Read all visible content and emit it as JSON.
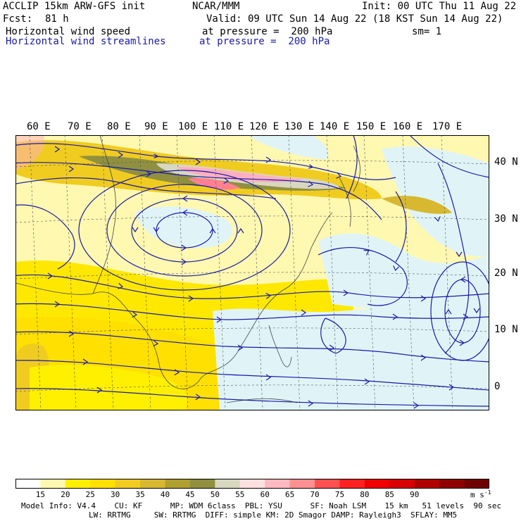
{
  "header": {
    "model": "ACCLIP 15km ARW-GFS init",
    "center": "NCAR/MMM",
    "init": "Init: 00 UTC Thu 11 Aug 22",
    "fcst_label": "Fcst:",
    "fcst_value": "81 h",
    "valid": "Valid: 09 UTC Sun 14 Aug 22 (18 KST Sun 14 Aug 22)",
    "field1": "Horizontal wind speed",
    "field1_level": "at pressure =  200 hPa",
    "sm": "sm= 1",
    "field2": "Horizontal wind streamlines",
    "field2_level": "at pressure =  200 hPa"
  },
  "longitude_labels": [
    "60 E",
    "70 E",
    "80 E",
    "90 E",
    "100 E",
    "110 E",
    "120 E",
    "130 E",
    "140 E",
    "150 E",
    "160 E",
    "170 E"
  ],
  "latitude_labels": [
    "40 N",
    "30 N",
    "20 N",
    "10 N",
    "0"
  ],
  "colorbar": {
    "unit": "m s",
    "unit_exp": "-1",
    "ticks": [
      "15",
      "20",
      "25",
      "30",
      "35",
      "40",
      "45",
      "50",
      "55",
      "60",
      "65",
      "70",
      "75",
      "80",
      "85",
      "90"
    ],
    "colors": [
      "#ffffff",
      "#fff8b0",
      "#fff000",
      "#ffe000",
      "#f0cc20",
      "#d8b830",
      "#b0a030",
      "#909040",
      "#d8d8c0",
      "#ffe0e0",
      "#ffb8c0",
      "#ff9090",
      "#ff5050",
      "#ff2020",
      "#f00000",
      "#d80000",
      "#b00000",
      "#900000",
      "#700000"
    ]
  },
  "footer": {
    "line1": "Model Info: V4.4    CU: KF      MP: WDM 6class  PBL: YSU      SF: Noah LSM    15 km   51 levels  90 sec",
    "line2": "LW: RRTMG     SW: RRTMG  DIFF: simple KM: 2D Smagor DAMP: Rayleigh3  SFLAY: MM5"
  },
  "map_colors": {
    "calm": "#e0f4f8",
    "low": "#fff8b0",
    "mid": "#ffe800",
    "high": "#d8b830",
    "jet": "#909040",
    "core": "#ffb0c0",
    "max": "#ff8090",
    "streamline": "#1a1aa6",
    "coast": "#444444"
  }
}
